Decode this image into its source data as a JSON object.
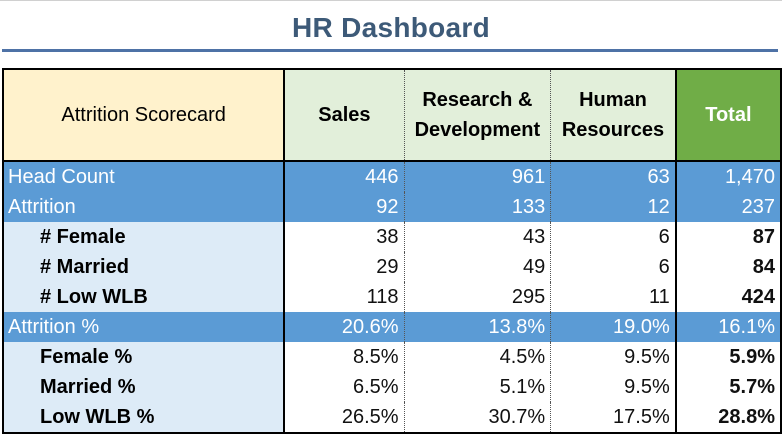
{
  "title": "HR Dashboard",
  "header": {
    "label": "Attrition Scorecard",
    "sales": "Sales",
    "rd_line1": "Research &",
    "rd_line2": "Development",
    "hr_line1": "Human",
    "hr_line2": "Resources",
    "total": "Total"
  },
  "rows": [
    {
      "label": "Head Count",
      "sales": "446",
      "rd": "961",
      "hr": "63",
      "total": "1,470"
    },
    {
      "label": "Attrition",
      "sales": "92",
      "rd": "133",
      "hr": "12",
      "total": "237"
    },
    {
      "label": "# Female",
      "sales": "38",
      "rd": "43",
      "hr": "6",
      "total": "87"
    },
    {
      "label": "# Married",
      "sales": "29",
      "rd": "49",
      "hr": "6",
      "total": "84"
    },
    {
      "label": "# Low WLB",
      "sales": "118",
      "rd": "295",
      "hr": "11",
      "total": "424"
    },
    {
      "label": "Attrition %",
      "sales": "20.6%",
      "rd": "13.8%",
      "hr": "19.0%",
      "total": "16.1%"
    },
    {
      "label": "Female %",
      "sales": "8.5%",
      "rd": "4.5%",
      "hr": "9.5%",
      "total": "5.9%"
    },
    {
      "label": "Married %",
      "sales": "6.5%",
      "rd": "5.1%",
      "hr": "9.5%",
      "total": "5.7%"
    },
    {
      "label": "Low WLB %",
      "sales": "26.5%",
      "rd": "30.7%",
      "hr": "17.5%",
      "total": "28.8%"
    }
  ],
  "colors": {
    "title": "#3d5a78",
    "title_rule": "#4e72a6",
    "label_header_bg": "#fff2cc",
    "dept_header_bg": "#e2efda",
    "total_header_bg": "#70ad47",
    "summary_row_bg": "#5b9bd5",
    "sub_label_bg": "#ddebf7"
  }
}
